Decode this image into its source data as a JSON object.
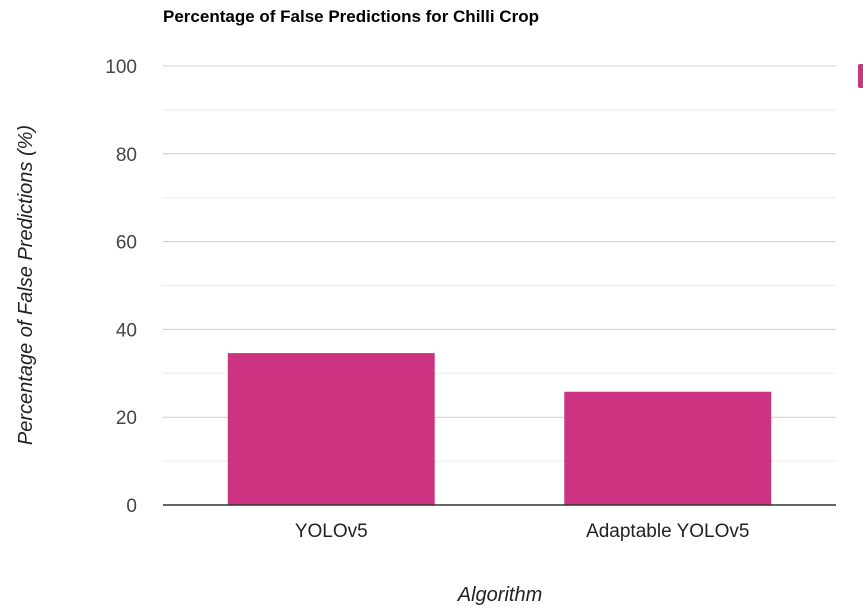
{
  "chart_data": {
    "type": "bar",
    "title": "Percentage of False Predictions for Chilli Crop",
    "xlabel": "Algorithm",
    "ylabel": "Percentage of False Predictions (%)",
    "categories": [
      "YOLOv5",
      "Adaptable YOLOv5"
    ],
    "values": [
      34.6,
      25.8
    ],
    "ylim": [
      0,
      100
    ],
    "yticks": [
      "0",
      "20",
      "40",
      "60",
      "80",
      "100"
    ],
    "grid": true,
    "bar_color": "#CC3482",
    "legend_color": "#CC3482"
  }
}
